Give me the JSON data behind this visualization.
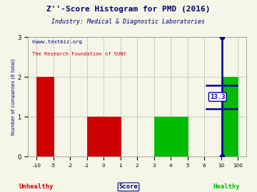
{
  "title": "Z''-Score Histogram for PMD (2016)",
  "subtitle": "Industry: Medical & Diagnostic Laboratories",
  "watermark1": "©www.textbiz.org",
  "watermark2": "The Research Foundation of SUNY",
  "ylabel": "Number of companies (6 total)",
  "xlabel_center": "Score",
  "xlabel_left": "Unhealthy",
  "xlabel_right": "Healthy",
  "bars": [
    {
      "x0": -10,
      "x1": -5,
      "height": 2,
      "color": "#cc0000"
    },
    {
      "x0": -1,
      "x1": 1,
      "height": 1,
      "color": "#cc0000"
    },
    {
      "x0": 3,
      "x1": 5,
      "height": 1,
      "color": "#00bb00"
    },
    {
      "x0": 10,
      "x1": 100,
      "height": 2,
      "color": "#00bb00"
    }
  ],
  "xticks_data": [
    -10,
    -5,
    -2,
    -1,
    0,
    1,
    2,
    3,
    4,
    5,
    6,
    10,
    100
  ],
  "xtick_labels": [
    "-10",
    "-5",
    "-2",
    "-1",
    "0",
    "1",
    "2",
    "3",
    "4",
    "5",
    "6",
    "10",
    "100"
  ],
  "xlim_data": [
    -10,
    100
  ],
  "ylim": [
    0,
    3
  ],
  "yticks": [
    0,
    1,
    2,
    3
  ],
  "marker_x_data": 13.3,
  "marker_color": "#000099",
  "marker_label": "13.3",
  "marker_err_y": 1.5,
  "marker_err_half": 0.3,
  "marker_err_xspan_data": 15,
  "grid_color": "#bbbbbb",
  "bg_color": "#f5f5e8",
  "title_color": "#000080",
  "subtitle_color": "#000080",
  "watermark1_color": "#000080",
  "watermark2_color": "#cc0000",
  "unhealthy_color": "#cc0000",
  "healthy_color": "#00bb00",
  "score_color": "#000080"
}
